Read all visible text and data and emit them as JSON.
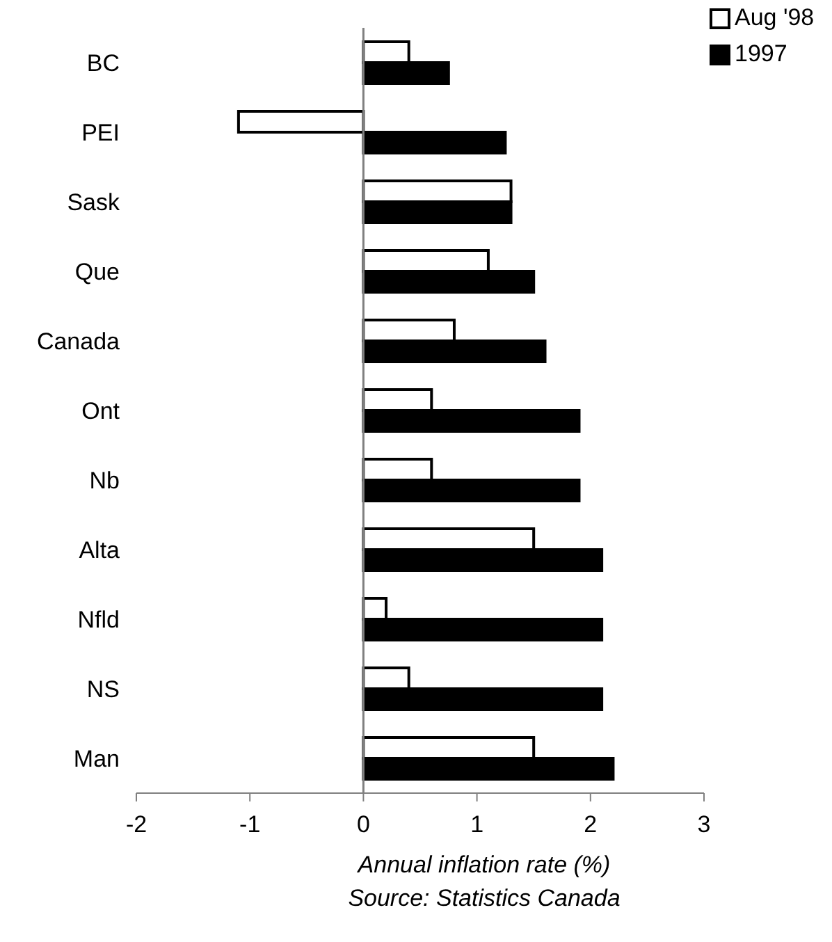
{
  "chart_data": {
    "type": "bar",
    "orientation": "horizontal",
    "xlabel": "Annual inflation rate (%)",
    "annotations": [
      "Source: Statistics Canada"
    ],
    "categories": [
      "BC",
      "PEI",
      "Sask",
      "Que",
      "Canada",
      "Ont",
      "Nb",
      "Alta",
      "Nfld",
      "NS",
      "Man"
    ],
    "series": [
      {
        "name": "Aug '98",
        "color": "#ffffff",
        "values": [
          0.4,
          -1.1,
          1.3,
          1.1,
          0.8,
          0.6,
          0.6,
          1.5,
          0.2,
          0.4,
          1.5
        ]
      },
      {
        "name": "1997",
        "color": "#000000",
        "values": [
          0.75,
          1.25,
          1.3,
          1.5,
          1.6,
          1.9,
          1.9,
          2.1,
          2.1,
          2.1,
          2.2
        ]
      }
    ],
    "xlim": [
      -2,
      3
    ],
    "xticks": [
      -2,
      -1,
      0,
      1,
      2,
      3
    ],
    "legend": "top right"
  }
}
